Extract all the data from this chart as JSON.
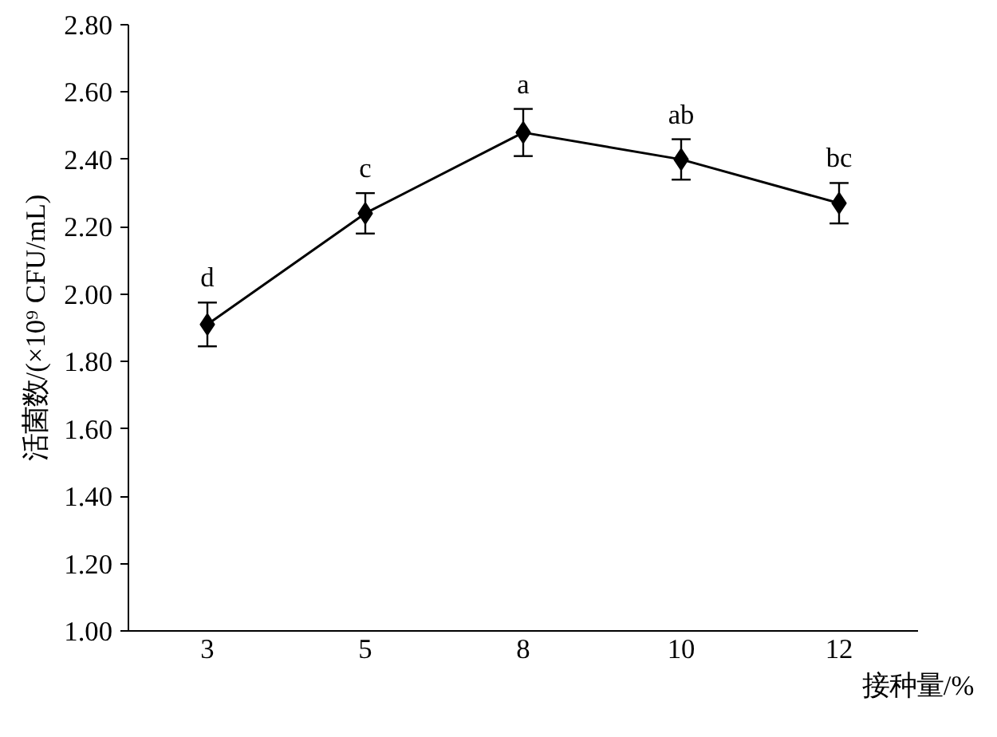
{
  "chart_data": {
    "type": "line",
    "xlabel": "接种量/%",
    "ylabel": "活菌数/(×10⁹ CFU/mL)",
    "categories": [
      "3",
      "5",
      "8",
      "10",
      "12"
    ],
    "series": [
      {
        "color": "#000000",
        "values": [
          1.91,
          2.24,
          2.48,
          2.4,
          2.27
        ],
        "errors": [
          0.065,
          0.06,
          0.07,
          0.06,
          0.06
        ]
      }
    ],
    "ylim": [
      1.0,
      2.8
    ],
    "yticks": [
      {
        "value": 1.0,
        "label": "1.00"
      },
      {
        "value": 1.2,
        "label": "1.20"
      },
      {
        "value": 1.4,
        "label": "1.40"
      },
      {
        "value": 1.6,
        "label": "1.60"
      },
      {
        "value": 1.8,
        "label": "1.80"
      },
      {
        "value": 2.0,
        "label": "2.00"
      },
      {
        "value": 2.2,
        "label": "2.20"
      },
      {
        "value": 2.4,
        "label": "2.40"
      },
      {
        "value": 2.6,
        "label": "2.60"
      },
      {
        "value": 2.8,
        "label": "2.80"
      }
    ],
    "annotations": [
      {
        "text": "d",
        "x": "3",
        "y": 1.975
      },
      {
        "text": "c",
        "x": "5",
        "y": 2.3
      },
      {
        "text": "a",
        "x": "8",
        "y": 2.55
      },
      {
        "text": "ab",
        "x": "10",
        "y": 2.46
      },
      {
        "text": "bc",
        "x": "12",
        "y": 2.33
      }
    ],
    "marker": "diamond",
    "line_style": "solid",
    "grid": false
  }
}
